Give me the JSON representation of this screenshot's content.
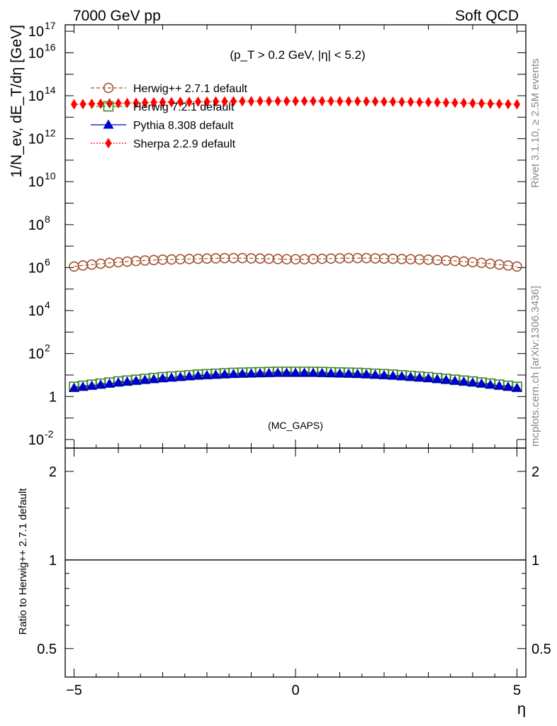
{
  "header": {
    "left": "7000 GeV pp",
    "right": "Soft QCD"
  },
  "side_labels": {
    "rivet": "Rivet 3.1.10, ≥ 2.5M events",
    "mcplots": "mcplots.cern.ch [arXiv:1306.3436]"
  },
  "chart_data": [
    {
      "type": "line",
      "title": "",
      "annotation": "(p_T > 0.2 GeV, |η| < 5.2)",
      "watermark": "(MC_GAPS)",
      "ylabel": "1/N_ev, dE_T/dη [GeV]",
      "xlabel": "η",
      "xlim": [
        -5.2,
        5.2
      ],
      "ylim_log10": [
        -2.4,
        17.3
      ],
      "y_scale": "log",
      "x_tick_labels": [
        "−5",
        "0",
        "5"
      ],
      "y_tick_labels": [
        {
          "exp": "-2",
          "label": "10^-2"
        },
        {
          "exp": "0",
          "label": "1"
        },
        {
          "exp": "2",
          "label": "10^2"
        },
        {
          "exp": "4",
          "label": "10^4"
        },
        {
          "exp": "6",
          "label": "10^6"
        },
        {
          "exp": "8",
          "label": "10^8"
        },
        {
          "exp": "10",
          "label": "10^10"
        },
        {
          "exp": "12",
          "label": "10^12"
        },
        {
          "exp": "14",
          "label": "10^14"
        },
        {
          "exp": "16",
          "label": "10^16"
        },
        {
          "exp": "17",
          "label": "10^17"
        }
      ],
      "legend_position": "top-left",
      "eta_bins": [
        -5.0,
        -4.8,
        -4.6,
        -4.4,
        -4.2,
        -4.0,
        -3.8,
        -3.6,
        -3.4,
        -3.2,
        -3.0,
        -2.8,
        -2.6,
        -2.4,
        -2.2,
        -2.0,
        -1.8,
        -1.6,
        -1.4,
        -1.2,
        -1.0,
        -0.8,
        -0.6,
        -0.4,
        -0.2,
        0.0,
        0.2,
        0.4,
        0.6,
        0.8,
        1.0,
        1.2,
        1.4,
        1.6,
        1.8,
        2.0,
        2.2,
        2.4,
        2.6,
        2.8,
        3.0,
        3.2,
        3.4,
        3.6,
        3.8,
        4.0,
        4.2,
        4.4,
        4.6,
        4.8,
        5.0
      ],
      "series": [
        {
          "name": "Herwig++ 2.7.1 default",
          "color": "#a0522d",
          "marker": "open-circle",
          "line": "dashed",
          "log10_values": [
            6.05,
            6.1,
            6.14,
            6.18,
            6.22,
            6.25,
            6.28,
            6.31,
            6.33,
            6.35,
            6.37,
            6.38,
            6.39,
            6.4,
            6.41,
            6.42,
            6.43,
            6.44,
            6.44,
            6.44,
            6.43,
            6.42,
            6.41,
            6.4,
            6.39,
            6.39,
            6.39,
            6.4,
            6.41,
            6.42,
            6.43,
            6.44,
            6.44,
            6.44,
            6.43,
            6.42,
            6.41,
            6.4,
            6.39,
            6.38,
            6.37,
            6.35,
            6.33,
            6.31,
            6.28,
            6.25,
            6.22,
            6.18,
            6.14,
            6.1,
            6.05
          ]
        },
        {
          "name": "Herwig 7.2.1 default",
          "color": "#3a8a1a",
          "marker": "open-square",
          "line": "dashed",
          "log10_values": [
            0.45,
            0.5,
            0.55,
            0.6,
            0.65,
            0.7,
            0.74,
            0.78,
            0.82,
            0.86,
            0.9,
            0.93,
            0.96,
            0.99,
            1.02,
            1.04,
            1.06,
            1.08,
            1.1,
            1.11,
            1.12,
            1.13,
            1.14,
            1.15,
            1.15,
            1.15,
            1.15,
            1.15,
            1.14,
            1.13,
            1.12,
            1.11,
            1.1,
            1.08,
            1.06,
            1.04,
            1.02,
            0.99,
            0.96,
            0.93,
            0.9,
            0.86,
            0.82,
            0.78,
            0.74,
            0.7,
            0.65,
            0.6,
            0.55,
            0.5,
            0.45
          ]
        },
        {
          "name": "Pythia 8.308 default",
          "color": "#0000cc",
          "marker": "filled-triangle",
          "line": "solid",
          "log10_values": [
            0.4,
            0.45,
            0.5,
            0.55,
            0.6,
            0.65,
            0.69,
            0.73,
            0.77,
            0.81,
            0.85,
            0.88,
            0.91,
            0.94,
            0.97,
            0.99,
            1.01,
            1.03,
            1.05,
            1.06,
            1.07,
            1.08,
            1.09,
            1.1,
            1.1,
            1.1,
            1.1,
            1.1,
            1.09,
            1.08,
            1.07,
            1.06,
            1.05,
            1.03,
            1.01,
            0.99,
            0.97,
            0.94,
            0.91,
            0.88,
            0.85,
            0.81,
            0.77,
            0.73,
            0.69,
            0.65,
            0.6,
            0.55,
            0.5,
            0.45,
            0.4
          ]
        },
        {
          "name": "Sherpa 2.2.9 default",
          "color": "#ff0000",
          "marker": "filled-diamond",
          "line": "dotted",
          "log10_values": [
            13.6,
            13.61,
            13.62,
            13.63,
            13.64,
            13.65,
            13.66,
            13.67,
            13.68,
            13.69,
            13.7,
            13.7,
            13.71,
            13.71,
            13.72,
            13.72,
            13.73,
            13.73,
            13.74,
            13.74,
            13.74,
            13.75,
            13.75,
            13.75,
            13.75,
            13.75,
            13.75,
            13.75,
            13.75,
            13.75,
            13.74,
            13.74,
            13.74,
            13.73,
            13.73,
            13.72,
            13.72,
            13.71,
            13.71,
            13.7,
            13.7,
            13.69,
            13.68,
            13.67,
            13.66,
            13.65,
            13.64,
            13.63,
            13.62,
            13.61,
            13.6
          ]
        }
      ]
    },
    {
      "type": "line",
      "ylabel": "Ratio to Herwig++ 2.7.1 default",
      "xlabel": "η",
      "xlim": [
        -5.2,
        5.2
      ],
      "ylim": [
        0.4,
        2.4
      ],
      "y_scale": "log",
      "y_tick_labels": [
        "0.5",
        "1",
        "2"
      ],
      "series": [
        {
          "name": "Herwig++ 2.7.1 default",
          "color": "#000000",
          "values": [
            1.0,
            1.0
          ]
        }
      ]
    }
  ]
}
